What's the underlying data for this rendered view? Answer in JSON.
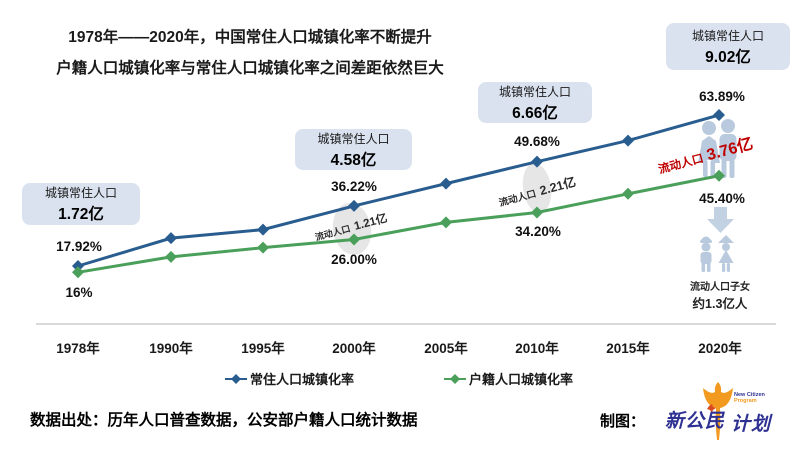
{
  "title": {
    "line1": "1978年——2020年，中国常住人口城镇化率不断提升",
    "line2": "户籍人口城镇化率与常住人口城镇化率之间差距依然巨大"
  },
  "chart_data": {
    "type": "line",
    "title": "1978年——2020年，中国常住人口城镇化率不断提升，户籍人口城镇化率与常住人口城镇化率之间差距依然巨大",
    "categories": [
      "1978年",
      "1990年",
      "1995年",
      "2000年",
      "2005年",
      "2010年",
      "2015年",
      "2020年"
    ],
    "series": [
      {
        "name": "常住人口城镇化率",
        "color": "#2a5d8f",
        "values": [
          17.92,
          26.4,
          29.0,
          36.22,
          43.0,
          49.68,
          56.1,
          63.89
        ]
      },
      {
        "name": "户籍人口城镇化率",
        "color": "#4aa05a",
        "values": [
          16.0,
          20.7,
          23.5,
          26.0,
          31.2,
          34.2,
          39.9,
          45.4
        ]
      }
    ],
    "ylim": [
      10,
      70
    ],
    "grid": false,
    "legend_position": "bottom-center",
    "point_labels": {
      "resident": {
        "1978": "17.92%",
        "2000": "36.22%",
        "2010": "49.68%",
        "2020": "63.89%"
      },
      "hukou": {
        "1978": "16%",
        "2000": "26.00%",
        "2010": "34.20%",
        "2020": "45.40%"
      }
    },
    "callouts": [
      {
        "label": "城镇常住人口",
        "value": "1.72亿"
      },
      {
        "label": "城镇常住人口",
        "value": "4.58亿"
      },
      {
        "label": "城镇常住人口",
        "value": "6.66亿"
      },
      {
        "label": "城镇常住人口",
        "value": "9.02亿"
      }
    ],
    "flow_labels": [
      {
        "prefix": "流动人口",
        "value": "1.21亿"
      },
      {
        "prefix": "流动人口",
        "value": "2.21亿"
      },
      {
        "prefix": "流动人口",
        "value": "3.76亿"
      }
    ]
  },
  "right_panel": {
    "children_caption_line1": "流动人口子女",
    "children_caption_line2": "约1.3亿人"
  },
  "footer": {
    "source": "数据出处：历年人口普查数据，公安部户籍人口统计数据",
    "credit_label": "制图：",
    "logo_text_left": "新公民",
    "logo_text_right": "计划",
    "logo_caption_line1": "New Citizen",
    "logo_caption_line2": "Program"
  },
  "colors": {
    "resident_line": "#2a5d8f",
    "hukou_line": "#4aa05a",
    "callout_bg": "#d9e2ee",
    "flow_red": "#c00000",
    "people_icon": "#b9cade",
    "arrow_icon": "#c3d2e3",
    "axis_line": "#d9d9d9",
    "ellipse_bg": "#e2e2e2"
  }
}
